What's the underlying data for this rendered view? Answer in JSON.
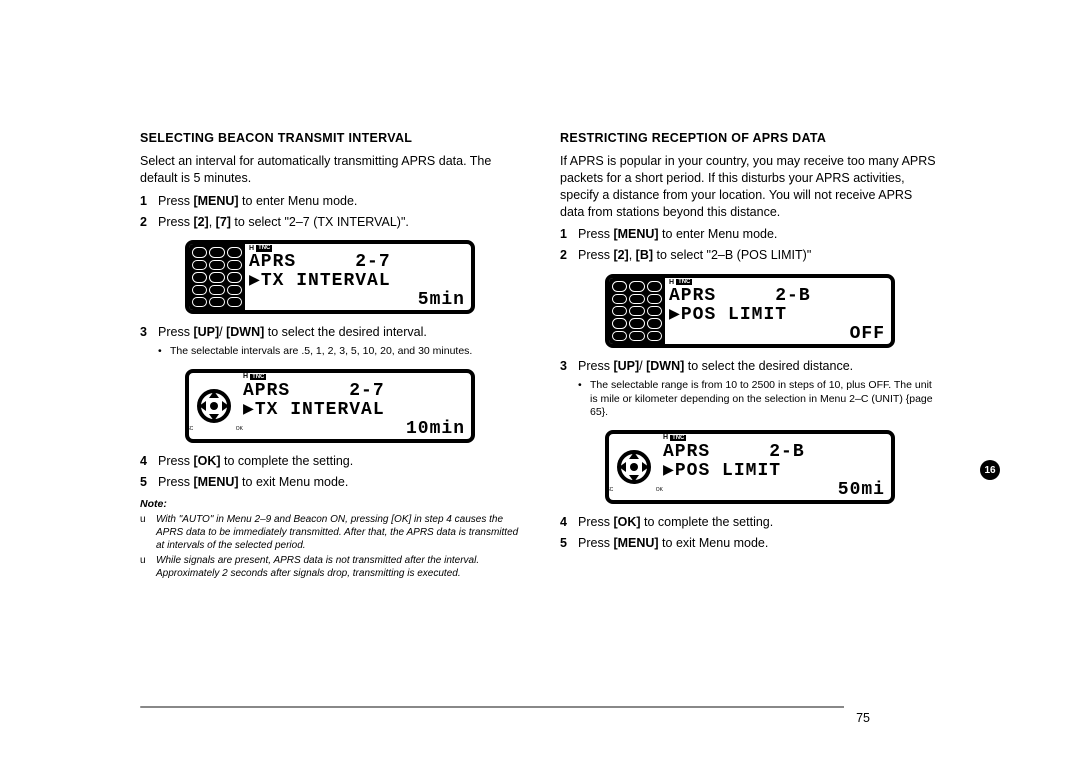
{
  "page_number": "75",
  "side_badge": "16",
  "left": {
    "title": "SELECTING BEACON TRANSMIT INTERVAL",
    "intro": "Select an interval for automatically transmitting APRS data.  The default is 5 minutes.",
    "step1_num": "1",
    "step1_text_a": "Press ",
    "step1_key": "[MENU]",
    "step1_text_b": " to enter Menu mode.",
    "step2_num": "2",
    "step2_text_a": "Press ",
    "step2_key1": "[2]",
    "step2_sep": ", ",
    "step2_key2": "[7]",
    "step2_text_b": " to select \"2–7 (TX INTERVAL)\".",
    "lcd1_line1": "APRS     2-7",
    "lcd1_line2": "▶TX INTERVAL",
    "lcd1_line3": "5min",
    "step3_num": "3",
    "step3_text_a": "Press ",
    "step3_key1": "[UP]",
    "step3_slash": "/ ",
    "step3_key2": "[DWN]",
    "step3_text_b": " to select the desired interval.",
    "bullet1": "The selectable intervals are .5, 1, 2, 3, 5, 10, 20, and 30 minutes.",
    "lcd2_line1": "APRS     2-7",
    "lcd2_line2": "▶TX INTERVAL",
    "lcd2_line3": "10min",
    "step4_num": "4",
    "step4_text_a": "Press ",
    "step4_key": "[OK]",
    "step4_text_b": " to complete the setting.",
    "step5_num": "5",
    "step5_text_a": "Press ",
    "step5_key": "[MENU]",
    "step5_text_b": " to exit Menu mode.",
    "note_hdr": "Note:",
    "note1": "With \"AUTO\" in Menu 2–9 and Beacon ON, pressing [OK] in step 4 causes the APRS data to be immediately transmitted.  After that, the APRS data is transmitted at intervals of the selected period.",
    "note2": "While signals are present, APRS data is not transmitted after the interval.  Approximately 2 seconds after signals drop, transmitting is executed."
  },
  "right": {
    "title": "RESTRICTING RECEPTION OF APRS DATA",
    "intro": "If APRS is popular in your country, you may receive too many APRS packets for a short period.  If this disturbs your APRS activities, specify a distance from your location.  You will not receive APRS data from stations beyond this distance.",
    "step1_num": "1",
    "step1_text_a": "Press ",
    "step1_key": "[MENU]",
    "step1_text_b": " to enter Menu mode.",
    "step2_num": "2",
    "step2_text_a": "Press ",
    "step2_key1": "[2]",
    "step2_sep": ", ",
    "step2_key2": "[B]",
    "step2_text_b": " to select \"2–B (POS LIMIT)\"",
    "lcd1_line1": "APRS     2-B",
    "lcd1_line2": "▶POS LIMIT",
    "lcd1_line3": "OFF",
    "step3_num": "3",
    "step3_text_a": "Press ",
    "step3_key1": "[UP]",
    "step3_slash": "/ ",
    "step3_key2": "[DWN]",
    "step3_text_b": " to select the desired distance.",
    "bullet1": "The selectable range is from 10 to 2500 in steps of 10, plus OFF.  The unit is mile or kilometer depending on the selection in Menu 2–C (UNIT) {page 65}.",
    "lcd2_line1": "APRS     2-B",
    "lcd2_line2": "▶POS LIMIT",
    "lcd2_line3": "50mi",
    "step4_num": "4",
    "step4_text_a": "Press ",
    "step4_key": "[OK]",
    "step4_text_b": " to complete the setting.",
    "step5_num": "5",
    "step5_text_a": "Press ",
    "step5_key": "[MENU]",
    "step5_text_b": " to exit Menu mode."
  },
  "lcd_indicator_h": "H",
  "lcd_indicator_tnc": "TNC",
  "bullet_char": "•",
  "note_mark": "u"
}
